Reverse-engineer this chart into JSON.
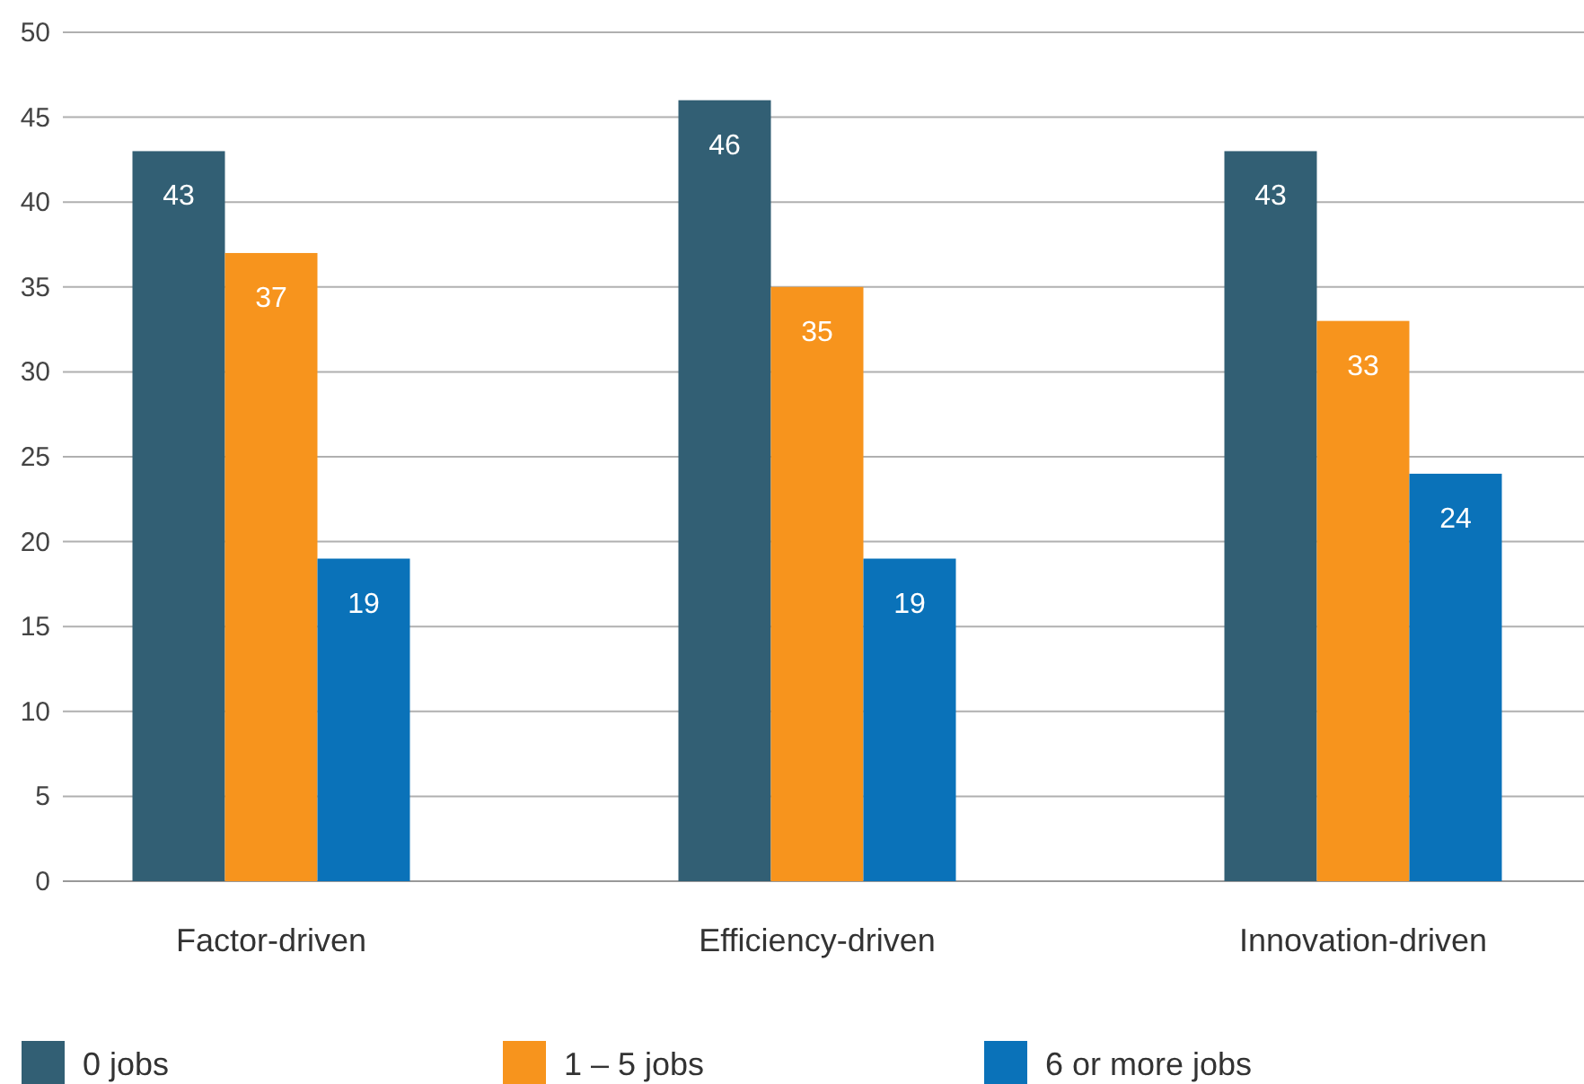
{
  "chart_data": {
    "type": "bar",
    "categories": [
      "Factor-driven",
      "Efficiency-driven",
      "Innovation-driven"
    ],
    "series": [
      {
        "name": "0 jobs",
        "color": "#325f74",
        "values": [
          43,
          46,
          43
        ]
      },
      {
        "name": "1 – 5 jobs",
        "color": "#f7941d",
        "values": [
          37,
          35,
          33
        ]
      },
      {
        "name": "6 or more jobs",
        "color": "#0a72b9",
        "values": [
          19,
          19,
          24
        ]
      }
    ],
    "ylim": [
      0,
      50
    ],
    "yticks": [
      0,
      5,
      10,
      15,
      20,
      25,
      30,
      35,
      40,
      45,
      50
    ],
    "grid": "y",
    "legend": "bottom",
    "data_labels": true
  }
}
